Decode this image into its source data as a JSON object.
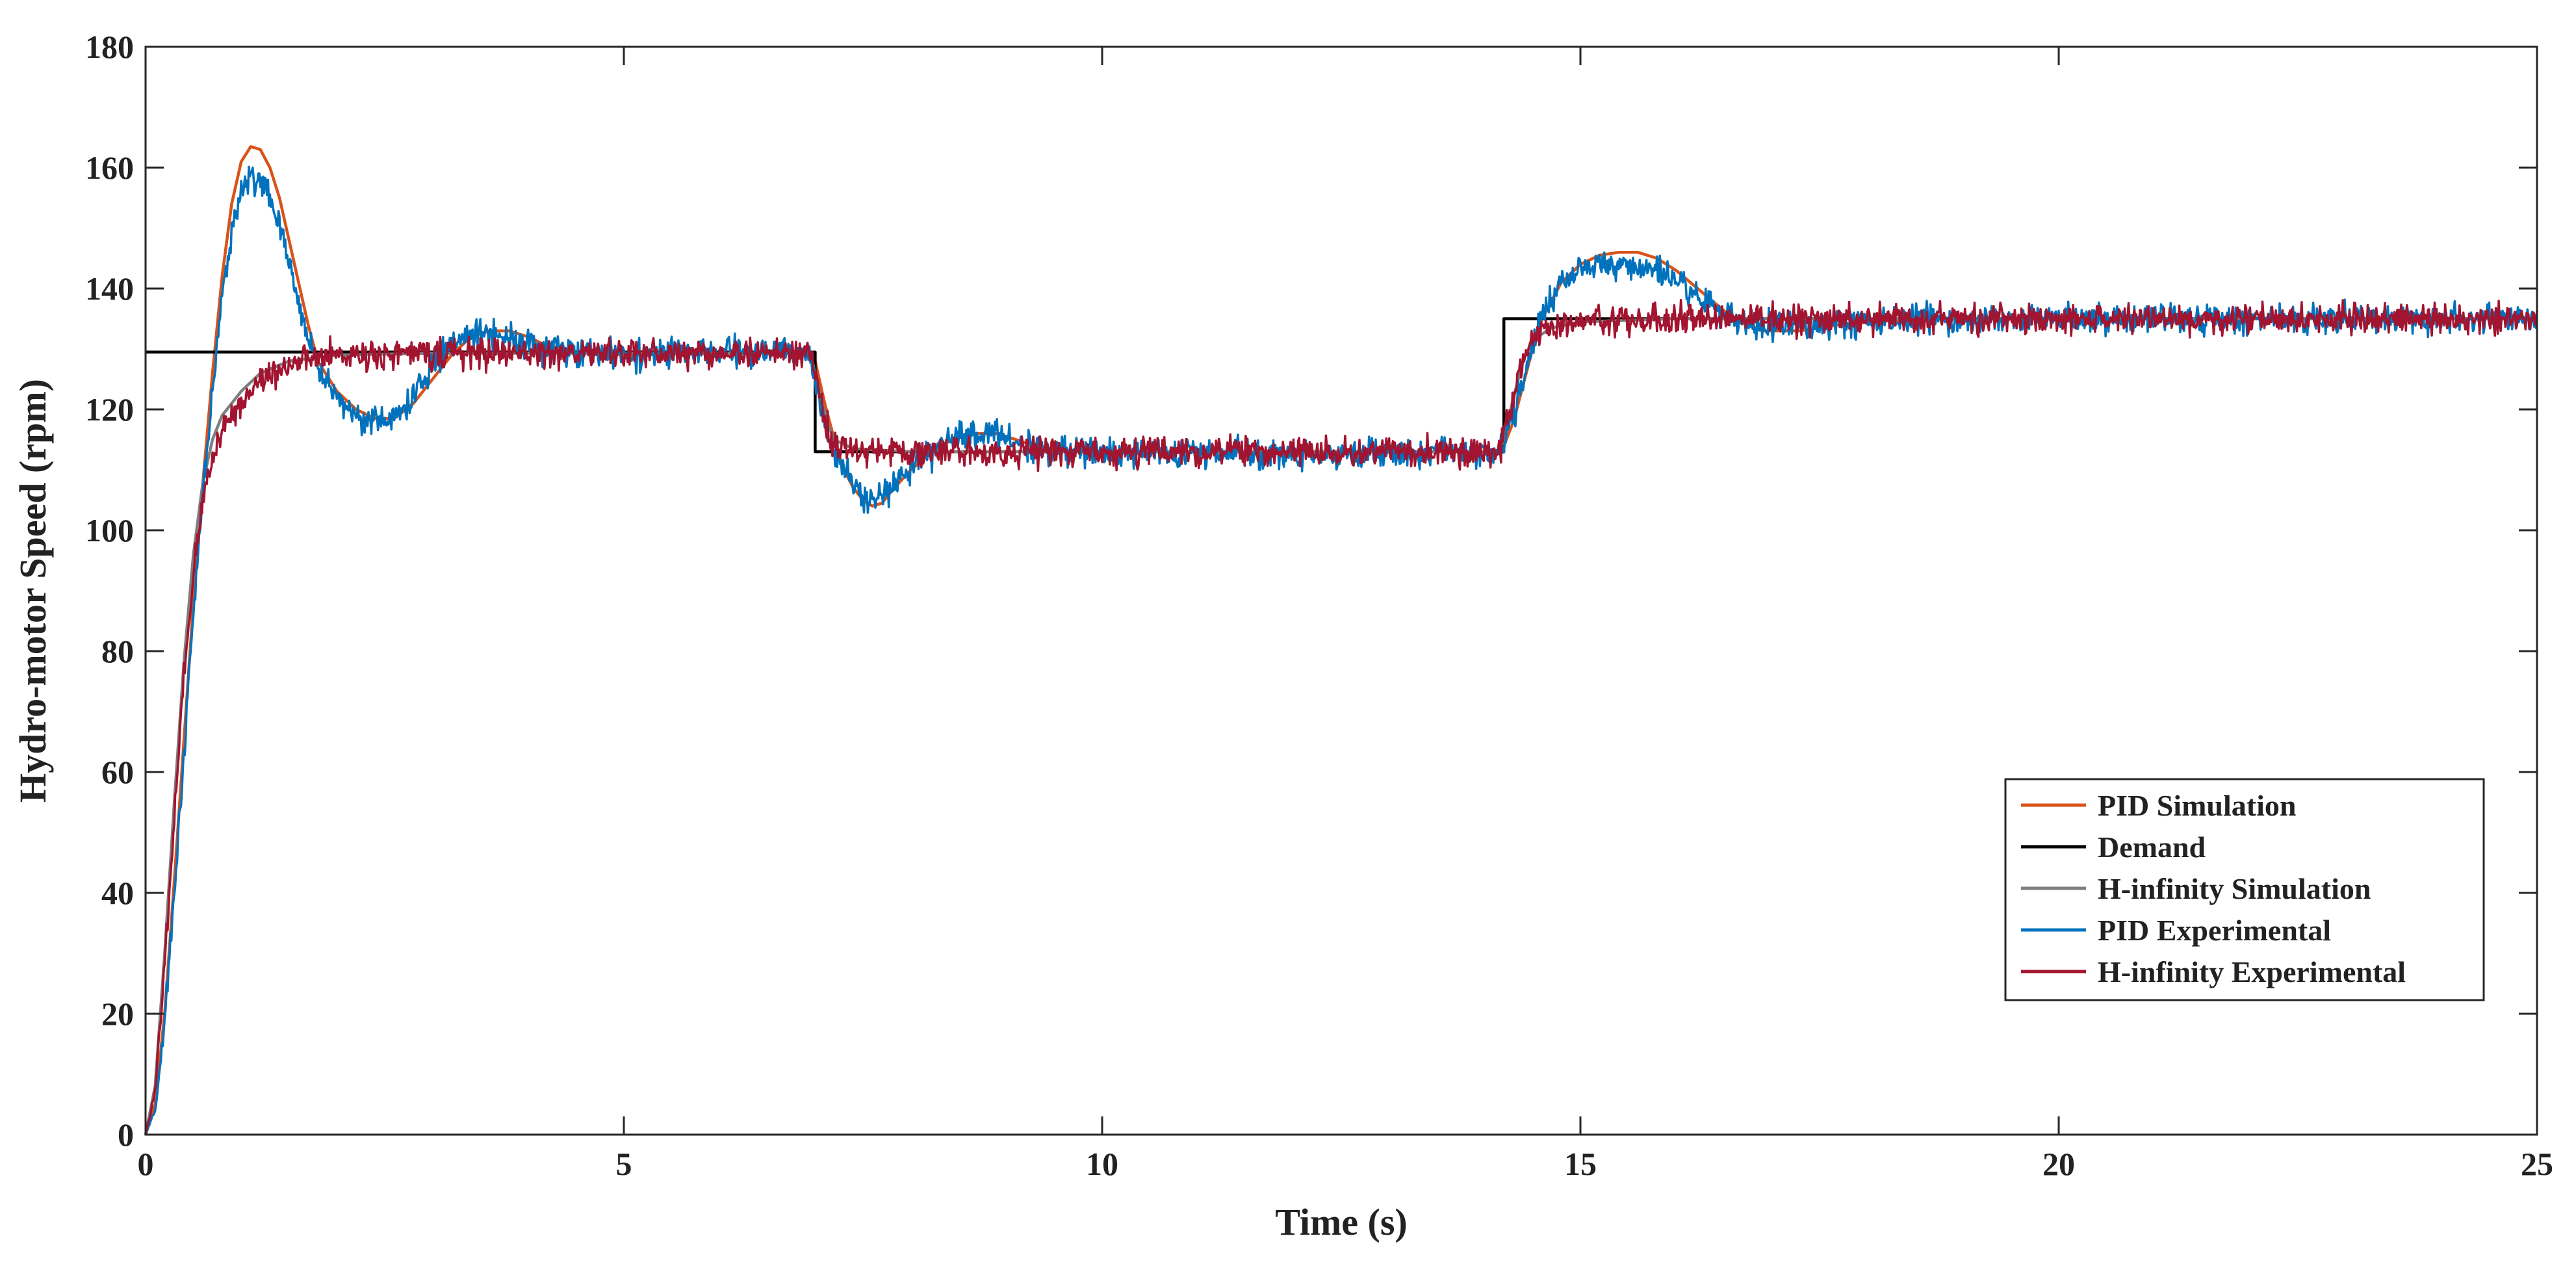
{
  "chart_data": {
    "type": "line",
    "xlabel": "Time (s)",
    "ylabel": "Hydro-motor Speed (rpm)",
    "xlim": [
      0,
      25
    ],
    "ylim": [
      0,
      180
    ],
    "xticks": [
      0,
      5,
      10,
      15,
      20,
      25
    ],
    "yticks": [
      0,
      20,
      40,
      60,
      80,
      100,
      120,
      140,
      160,
      180
    ],
    "grid": false,
    "legend_position": "lower-right",
    "series": [
      {
        "name": "PID Simulation",
        "color": "#d95319",
        "noise": 0,
        "points": [
          [
            0,
            0
          ],
          [
            0.1,
            5
          ],
          [
            0.2,
            20
          ],
          [
            0.3,
            42
          ],
          [
            0.4,
            65
          ],
          [
            0.5,
            88
          ],
          [
            0.6,
            108
          ],
          [
            0.7,
            126
          ],
          [
            0.8,
            142
          ],
          [
            0.9,
            154
          ],
          [
            1.0,
            161
          ],
          [
            1.1,
            163.5
          ],
          [
            1.2,
            163
          ],
          [
            1.3,
            160
          ],
          [
            1.4,
            155
          ],
          [
            1.5,
            148
          ],
          [
            1.6,
            141
          ],
          [
            1.7,
            134
          ],
          [
            1.8,
            128
          ],
          [
            2.0,
            123
          ],
          [
            2.2,
            120
          ],
          [
            2.4,
            118.5
          ],
          [
            2.6,
            118.5
          ],
          [
            2.8,
            121
          ],
          [
            3.0,
            125
          ],
          [
            3.2,
            129
          ],
          [
            3.4,
            132
          ],
          [
            3.6,
            133
          ],
          [
            3.8,
            133
          ],
          [
            4.0,
            132
          ],
          [
            4.2,
            130.5
          ],
          [
            4.5,
            129.5
          ],
          [
            5.0,
            129
          ],
          [
            6.0,
            129.3
          ],
          [
            6.9,
            129.3
          ],
          [
            7.0,
            128
          ],
          [
            7.1,
            121
          ],
          [
            7.2,
            115
          ],
          [
            7.3,
            110
          ],
          [
            7.4,
            107
          ],
          [
            7.5,
            105
          ],
          [
            7.6,
            104
          ],
          [
            7.7,
            104.5
          ],
          [
            7.8,
            106.5
          ],
          [
            8.0,
            110
          ],
          [
            8.3,
            114
          ],
          [
            8.6,
            116
          ],
          [
            8.9,
            116
          ],
          [
            9.2,
            114.5
          ],
          [
            9.6,
            113
          ],
          [
            10.0,
            113
          ],
          [
            11.0,
            113
          ],
          [
            12.0,
            113
          ],
          [
            13.0,
            113
          ],
          [
            14.0,
            113
          ],
          [
            14.15,
            113
          ],
          [
            14.2,
            114
          ],
          [
            14.3,
            118
          ],
          [
            14.4,
            124
          ],
          [
            14.5,
            130
          ],
          [
            14.6,
            135
          ],
          [
            14.7,
            138
          ],
          [
            14.8,
            141
          ],
          [
            15.0,
            144
          ],
          [
            15.2,
            145.5
          ],
          [
            15.4,
            146
          ],
          [
            15.6,
            146
          ],
          [
            15.8,
            145
          ],
          [
            16.0,
            143
          ],
          [
            16.3,
            139
          ],
          [
            16.6,
            135
          ],
          [
            16.9,
            133
          ],
          [
            17.3,
            133
          ],
          [
            17.7,
            134
          ],
          [
            18.5,
            135
          ],
          [
            20.0,
            135
          ],
          [
            25.0,
            135
          ]
        ]
      },
      {
        "name": "Demand",
        "color": "#000000",
        "noise": 0,
        "points": [
          [
            0,
            129.5
          ],
          [
            7.0,
            129.5
          ],
          [
            7.0,
            113
          ],
          [
            7.15,
            113
          ],
          [
            14.15,
            113
          ],
          [
            14.2,
            113
          ],
          [
            14.2,
            135
          ],
          [
            25.0,
            135
          ]
        ]
      },
      {
        "name": "H-infinity Simulation",
        "color": "#7f7f7f",
        "noise": 0,
        "points": [
          [
            0,
            0
          ],
          [
            0.1,
            8
          ],
          [
            0.2,
            30
          ],
          [
            0.3,
            55
          ],
          [
            0.4,
            78
          ],
          [
            0.5,
            96
          ],
          [
            0.6,
            108
          ],
          [
            0.7,
            115
          ],
          [
            0.8,
            119
          ],
          [
            1.0,
            123
          ],
          [
            1.2,
            126
          ],
          [
            1.5,
            128
          ],
          [
            2.0,
            129
          ],
          [
            3.0,
            129.3
          ],
          [
            6.95,
            129.3
          ],
          [
            7.0,
            126
          ],
          [
            7.1,
            119
          ],
          [
            7.2,
            115
          ],
          [
            7.4,
            113.5
          ],
          [
            8.0,
            113
          ],
          [
            14.15,
            113
          ],
          [
            14.2,
            115
          ],
          [
            14.3,
            122
          ],
          [
            14.4,
            128
          ],
          [
            14.5,
            131.5
          ],
          [
            14.7,
            133.5
          ],
          [
            15.0,
            134.5
          ],
          [
            16.0,
            135
          ],
          [
            25.0,
            135
          ]
        ]
      },
      {
        "name": "PID Experimental",
        "color": "#0072bd",
        "noise": 1.2,
        "points": [
          [
            0,
            0
          ],
          [
            0.1,
            4
          ],
          [
            0.2,
            18
          ],
          [
            0.3,
            40
          ],
          [
            0.4,
            63
          ],
          [
            0.5,
            86
          ],
          [
            0.6,
            106
          ],
          [
            0.7,
            123
          ],
          [
            0.8,
            138
          ],
          [
            0.9,
            150
          ],
          [
            1.0,
            156
          ],
          [
            1.1,
            158.5
          ],
          [
            1.2,
            158
          ],
          [
            1.3,
            155
          ],
          [
            1.4,
            150
          ],
          [
            1.5,
            144
          ],
          [
            1.6,
            138
          ],
          [
            1.7,
            132
          ],
          [
            1.8,
            127
          ],
          [
            2.0,
            122
          ],
          [
            2.2,
            119
          ],
          [
            2.4,
            118
          ],
          [
            2.6,
            118.5
          ],
          [
            2.8,
            122
          ],
          [
            3.0,
            127
          ],
          [
            3.2,
            131
          ],
          [
            3.5,
            133
          ],
          [
            3.8,
            132
          ],
          [
            4.2,
            130
          ],
          [
            4.5,
            129.5
          ],
          [
            5.0,
            129
          ],
          [
            6.0,
            129.5
          ],
          [
            6.8,
            129.5
          ],
          [
            6.95,
            128
          ],
          [
            7.0,
            125
          ],
          [
            7.1,
            118
          ],
          [
            7.2,
            113
          ],
          [
            7.3,
            110
          ],
          [
            7.4,
            107.5
          ],
          [
            7.6,
            105.5
          ],
          [
            7.8,
            107
          ],
          [
            8.0,
            110
          ],
          [
            8.3,
            114
          ],
          [
            8.6,
            116
          ],
          [
            8.9,
            116
          ],
          [
            9.2,
            114
          ],
          [
            9.6,
            113
          ],
          [
            10.0,
            113
          ],
          [
            12.0,
            112.5
          ],
          [
            14.15,
            113
          ],
          [
            14.2,
            114
          ],
          [
            14.3,
            119
          ],
          [
            14.4,
            125
          ],
          [
            14.5,
            131
          ],
          [
            14.6,
            136
          ],
          [
            14.8,
            141
          ],
          [
            15.0,
            143
          ],
          [
            15.3,
            144
          ],
          [
            15.6,
            143.5
          ],
          [
            15.9,
            142
          ],
          [
            16.2,
            139
          ],
          [
            16.5,
            136
          ],
          [
            16.8,
            134
          ],
          [
            17.2,
            133.5
          ],
          [
            17.6,
            134
          ],
          [
            18.5,
            135
          ],
          [
            20.0,
            135
          ],
          [
            25.0,
            135
          ]
        ]
      },
      {
        "name": "H-infinity Experimental",
        "color": "#a2142f",
        "noise": 1.2,
        "points": [
          [
            0,
            0
          ],
          [
            0.1,
            7
          ],
          [
            0.2,
            28
          ],
          [
            0.3,
            52
          ],
          [
            0.4,
            75
          ],
          [
            0.5,
            93
          ],
          [
            0.6,
            105
          ],
          [
            0.7,
            112
          ],
          [
            0.8,
            117
          ],
          [
            1.0,
            121
          ],
          [
            1.2,
            125
          ],
          [
            1.5,
            127.5
          ],
          [
            2.0,
            129
          ],
          [
            3.0,
            129.3
          ],
          [
            6.95,
            129.3
          ],
          [
            7.0,
            126
          ],
          [
            7.1,
            118
          ],
          [
            7.2,
            114
          ],
          [
            7.4,
            113
          ],
          [
            8.0,
            113
          ],
          [
            14.15,
            113
          ],
          [
            14.2,
            115
          ],
          [
            14.3,
            122
          ],
          [
            14.4,
            128
          ],
          [
            14.5,
            131.5
          ],
          [
            14.7,
            133.5
          ],
          [
            15.0,
            134.5
          ],
          [
            16.0,
            135
          ],
          [
            25.0,
            135
          ]
        ]
      }
    ]
  }
}
